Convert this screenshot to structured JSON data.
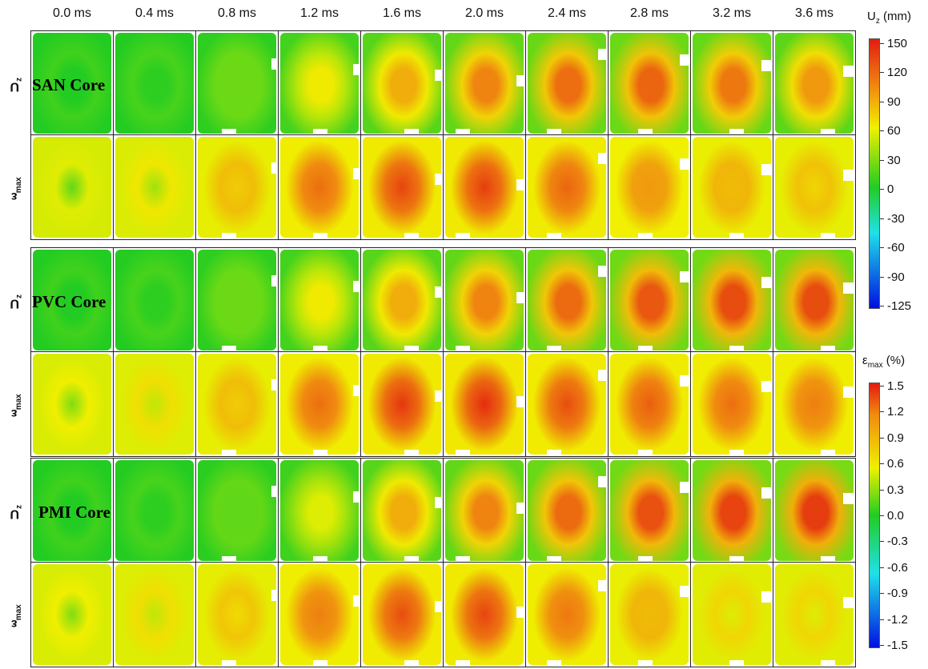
{
  "times": [
    "0.0 ms",
    "0.4 ms",
    "0.8 ms",
    "1.2 ms",
    "1.6 ms",
    "2.0 ms",
    "2.4 ms",
    "2.8 ms",
    "3.2 ms",
    "3.6 ms"
  ],
  "labels": {
    "uz_main": "U",
    "uz_sub": "z",
    "e_main": "ε",
    "e_sub": "max"
  },
  "cores": [
    {
      "name": "SAN Core",
      "uz_levels": [
        0.0,
        0.02,
        0.12,
        0.35,
        0.55,
        0.68,
        0.75,
        0.78,
        0.72,
        0.62
      ],
      "strain_levels": [
        0.1,
        0.2,
        0.45,
        0.75,
        0.88,
        0.9,
        0.78,
        0.62,
        0.5,
        0.42
      ]
    },
    {
      "name": "PVC Core",
      "uz_levels": [
        0.0,
        0.02,
        0.12,
        0.35,
        0.55,
        0.68,
        0.76,
        0.82,
        0.85,
        0.85
      ],
      "strain_levels": [
        0.15,
        0.25,
        0.45,
        0.75,
        0.92,
        0.95,
        0.85,
        0.8,
        0.75,
        0.7
      ]
    },
    {
      "name": "PMI Core",
      "uz_levels": [
        0.0,
        0.02,
        0.1,
        0.3,
        0.55,
        0.68,
        0.76,
        0.84,
        0.88,
        0.9
      ],
      "strain_levels": [
        0.15,
        0.25,
        0.4,
        0.7,
        0.85,
        0.88,
        0.72,
        0.5,
        0.3,
        0.3
      ]
    }
  ],
  "colorbar_uz": {
    "title_main": "U",
    "title_sub": "z",
    "title_unit": "(mm)",
    "ticks": [
      "150",
      "120",
      "90",
      "60",
      "30",
      "0",
      "-30",
      "-60",
      "-90",
      "-125"
    ]
  },
  "colorbar_strain": {
    "title_main": "ε",
    "title_sub": "max",
    "title_unit": "(%)",
    "ticks": [
      "1.5",
      "1.2",
      "0.9",
      "0.6",
      "0.3",
      "0.0",
      "-0.3",
      "-0.6",
      "-0.9",
      "-1.2",
      "-1.5"
    ]
  },
  "colors": {
    "green": "#22cc22",
    "yellow": "#f0f000",
    "orange": "#f08c10",
    "red": "#e21c10",
    "blue": "#0010e0",
    "cyan": "#20e0e8"
  }
}
